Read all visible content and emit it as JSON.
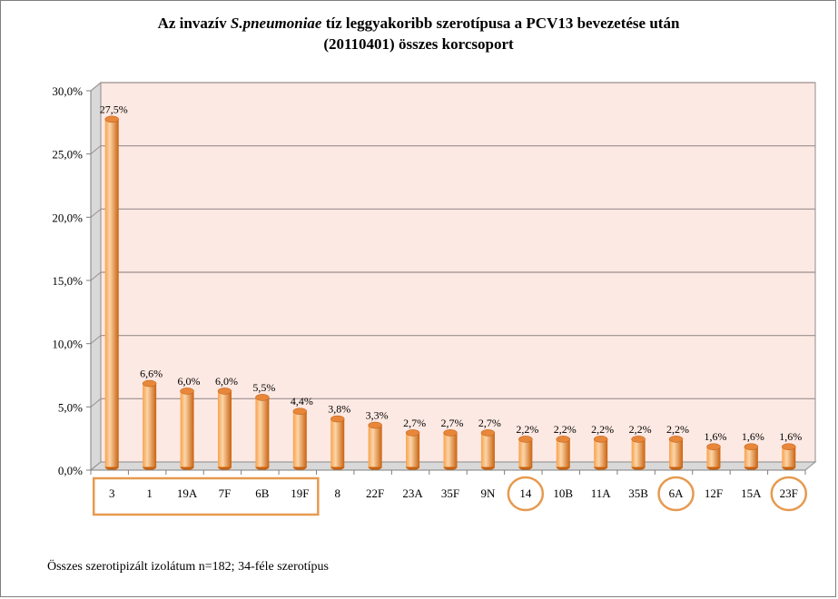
{
  "chart_data": {
    "type": "bar",
    "title_line1_before": "Az invazív ",
    "title_line1_italic": "S.pneumoniae",
    "title_line1_after": " tíz leggyakoribb szerotípusa a PCV13 bevezetése után",
    "title_line2": "(20110401) összes korcsoport",
    "categories": [
      "3",
      "1",
      "19A",
      "7F",
      "6B",
      "19F",
      "8",
      "22F",
      "23A",
      "35F",
      "9N",
      "14",
      "10B",
      "11A",
      "35B",
      "6A",
      "12F",
      "15A",
      "23F"
    ],
    "values": [
      27.5,
      6.6,
      6.0,
      6.0,
      5.5,
      4.4,
      3.8,
      3.3,
      2.7,
      2.7,
      2.7,
      2.2,
      2.2,
      2.2,
      2.2,
      2.2,
      1.6,
      1.6,
      1.6
    ],
    "data_labels": [
      "27,5%",
      "6,6%",
      "6,0%",
      "6,0%",
      "5,5%",
      "4,4%",
      "3,8%",
      "3,3%",
      "2,7%",
      "2,7%",
      "2,7%",
      "2,2%",
      "2,2%",
      "2,2%",
      "2,2%",
      "2,2%",
      "1,6%",
      "1,6%",
      "1,6%"
    ],
    "ylim": [
      0,
      30
    ],
    "yticks": [
      0,
      5,
      10,
      15,
      20,
      25,
      30
    ],
    "ytick_labels": [
      "0,0%",
      "5,0%",
      "10,0%",
      "15,0%",
      "20,0%",
      "25,0%",
      "30,0%"
    ],
    "grid": true,
    "xlabel": "",
    "ylabel": "",
    "highlight_box_categories": [
      "3",
      "1",
      "19A",
      "7F",
      "6B",
      "19F"
    ],
    "highlight_circle_categories": [
      "14",
      "6A",
      "23F"
    ],
    "footnote": "Összes szerotipizált izolátum n=182; 34-féle szerotípus",
    "colors": {
      "bar_light": "#fcd5a8",
      "bar_mid": "#f7a24c",
      "bar_dark": "#c9620f",
      "bar_top": "#e8863a",
      "plot_bg": "#fde9e3",
      "grid": "#9a8f8f",
      "highlight": "#e69a4f"
    }
  }
}
